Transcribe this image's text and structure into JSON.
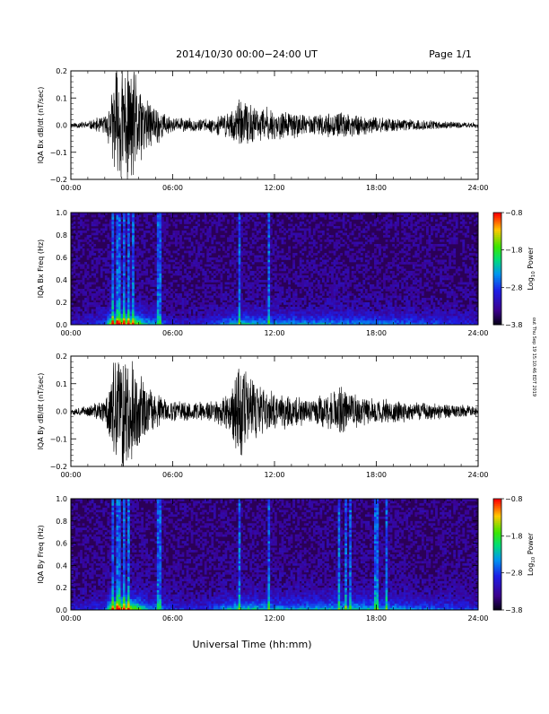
{
  "header": {
    "title": "2014/10/30   00:00−24:00 UT",
    "page": "Page 1/1"
  },
  "colors": {
    "background": "#ffffff",
    "axis": "#000000",
    "trace": "#000000",
    "spectrogram_floor": "#2b0057"
  },
  "xlabel": "Universal Time (hh:mm)",
  "timestamp": "out Thu Sep 19 15:10:46 EDT 2019",
  "colorbar": {
    "label_prefix": "Log",
    "label_sub": "10",
    "label_suffix": " Power",
    "ticks": [
      "−0.8",
      "−1.8",
      "−2.8",
      "−3.8"
    ],
    "range": [
      -3.8,
      -0.8
    ]
  },
  "chart_data": [
    {
      "type": "line",
      "title": "",
      "ylabel": "IQA Bx dB/dt (nT/sec)",
      "xlabel": "",
      "xlim": [
        "00:00",
        "24:00"
      ],
      "ylim": [
        -0.2,
        0.2
      ],
      "x_ticks": [
        "00:00",
        "06:00",
        "12:00",
        "18:00",
        "24:00"
      ],
      "y_ticks": [
        "0.2",
        "0.1",
        "0.0",
        "−0.1",
        "−0.2"
      ],
      "envelope": {
        "hours": [
          0,
          1,
          2,
          2.4,
          2.6,
          3,
          3.5,
          4,
          4.5,
          5,
          5.5,
          6,
          7,
          8,
          9,
          9.5,
          10,
          10.5,
          11,
          11.5,
          12,
          13,
          14,
          15,
          16,
          17,
          18,
          19,
          20,
          21,
          22,
          23,
          24
        ],
        "amplitude": [
          0.012,
          0.015,
          0.04,
          0.12,
          0.25,
          0.25,
          0.25,
          0.18,
          0.1,
          0.09,
          0.05,
          0.03,
          0.028,
          0.025,
          0.045,
          0.07,
          0.1,
          0.09,
          0.07,
          0.075,
          0.06,
          0.055,
          0.04,
          0.045,
          0.05,
          0.045,
          0.03,
          0.028,
          0.025,
          0.02,
          0.015,
          0.012,
          0.01
        ]
      }
    },
    {
      "type": "heatmap",
      "title": "",
      "ylabel": "IQA Bx Freq (Hz)",
      "zlabel": "Log10 Power",
      "xlim": [
        "00:00",
        "24:00"
      ],
      "ylim": [
        0.0,
        1.0
      ],
      "x_ticks": [
        "00:00",
        "06:00",
        "12:00",
        "18:00",
        "24:00"
      ],
      "y_ticks": [
        "1.0",
        "0.8",
        "0.6",
        "0.4",
        "0.2",
        "0.0"
      ],
      "bursts_hours": [
        2.5,
        2.7,
        2.9,
        3.1,
        3.4,
        3.7,
        5.2,
        9.9,
        11.7
      ],
      "activity_hours": [
        0,
        2,
        2.4,
        3,
        3.5,
        4,
        4.5,
        5,
        6,
        8,
        9.5,
        10,
        11,
        12,
        14,
        16,
        18,
        20,
        22,
        24
      ],
      "activity_level": [
        0.15,
        0.3,
        0.9,
        1.0,
        0.95,
        0.8,
        0.5,
        0.45,
        0.2,
        0.2,
        0.5,
        0.55,
        0.5,
        0.45,
        0.45,
        0.45,
        0.4,
        0.35,
        0.3,
        0.2
      ]
    },
    {
      "type": "line",
      "title": "",
      "ylabel": "IQA By dB/dt (nT/sec)",
      "xlabel": "",
      "xlim": [
        "00:00",
        "24:00"
      ],
      "ylim": [
        -0.2,
        0.2
      ],
      "x_ticks": [
        "00:00",
        "06:00",
        "12:00",
        "18:00",
        "24:00"
      ],
      "y_ticks": [
        "0.2",
        "0.1",
        "0.0",
        "−0.1",
        "−0.2"
      ],
      "envelope": {
        "hours": [
          0,
          1,
          2,
          2.4,
          2.6,
          3,
          3.5,
          4,
          4.5,
          5,
          5.5,
          6,
          7,
          8,
          9,
          9.5,
          10,
          10.5,
          11,
          11.5,
          12,
          13,
          14,
          15,
          16,
          17,
          18,
          19,
          20,
          21,
          22,
          23,
          24
        ],
        "amplitude": [
          0.015,
          0.02,
          0.05,
          0.15,
          0.25,
          0.25,
          0.22,
          0.15,
          0.1,
          0.08,
          0.05,
          0.04,
          0.04,
          0.04,
          0.06,
          0.12,
          0.25,
          0.15,
          0.1,
          0.09,
          0.08,
          0.07,
          0.06,
          0.065,
          0.1,
          0.06,
          0.05,
          0.045,
          0.04,
          0.035,
          0.03,
          0.025,
          0.02
        ]
      }
    },
    {
      "type": "heatmap",
      "title": "",
      "ylabel": "IQA By Freq (Hz)",
      "zlabel": "Log10 Power",
      "xlim": [
        "00:00",
        "24:00"
      ],
      "ylim": [
        0.0,
        1.0
      ],
      "x_ticks": [
        "00:00",
        "06:00",
        "12:00",
        "18:00",
        "24:00"
      ],
      "y_ticks": [
        "1.0",
        "0.8",
        "0.6",
        "0.4",
        "0.2",
        "0.0"
      ],
      "bursts_hours": [
        2.5,
        2.7,
        2.9,
        3.1,
        3.4,
        5.2,
        9.9,
        11.7,
        15.8,
        16.2,
        16.5,
        18.0,
        18.6
      ],
      "activity_hours": [
        0,
        2,
        2.4,
        3,
        3.5,
        4,
        4.5,
        5,
        6,
        8,
        9.5,
        10,
        11,
        12,
        14,
        16,
        18,
        20,
        22,
        24
      ],
      "activity_level": [
        0.15,
        0.3,
        0.9,
        1.0,
        0.95,
        0.8,
        0.5,
        0.45,
        0.25,
        0.25,
        0.55,
        0.6,
        0.55,
        0.5,
        0.5,
        0.55,
        0.55,
        0.4,
        0.35,
        0.25
      ]
    }
  ]
}
